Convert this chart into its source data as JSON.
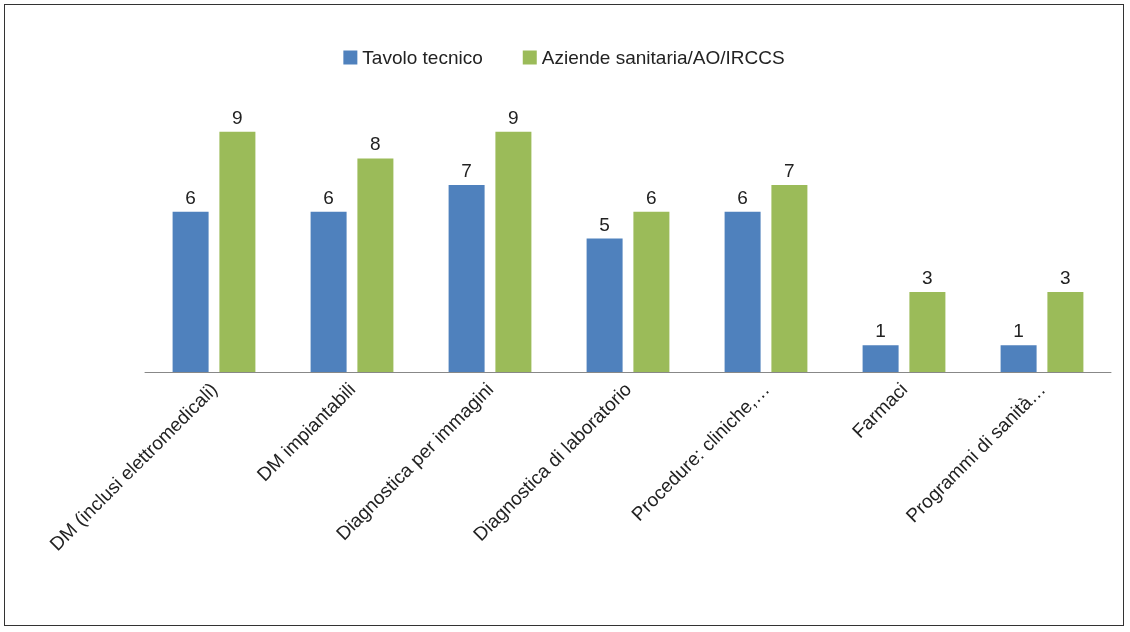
{
  "chart_data": {
    "type": "bar",
    "categories": [
      "DM (inclusi elettromedicali)",
      "DM impiantabili",
      "Diagnostica per immagini",
      "Diagnostica di laboratorio",
      "Procedure: cliniche,…",
      "Farmaci",
      "Programmi di sanità…"
    ],
    "series": [
      {
        "name": "Tavolo tecnico",
        "color": "#4f81bd",
        "values": [
          6,
          6,
          7,
          5,
          6,
          1,
          1
        ]
      },
      {
        "name": "Aziende sanitaria/AO/IRCCS",
        "color": "#9bbb59",
        "values": [
          9,
          8,
          9,
          6,
          7,
          3,
          3
        ]
      }
    ],
    "data_labels": true,
    "legend": "top"
  }
}
